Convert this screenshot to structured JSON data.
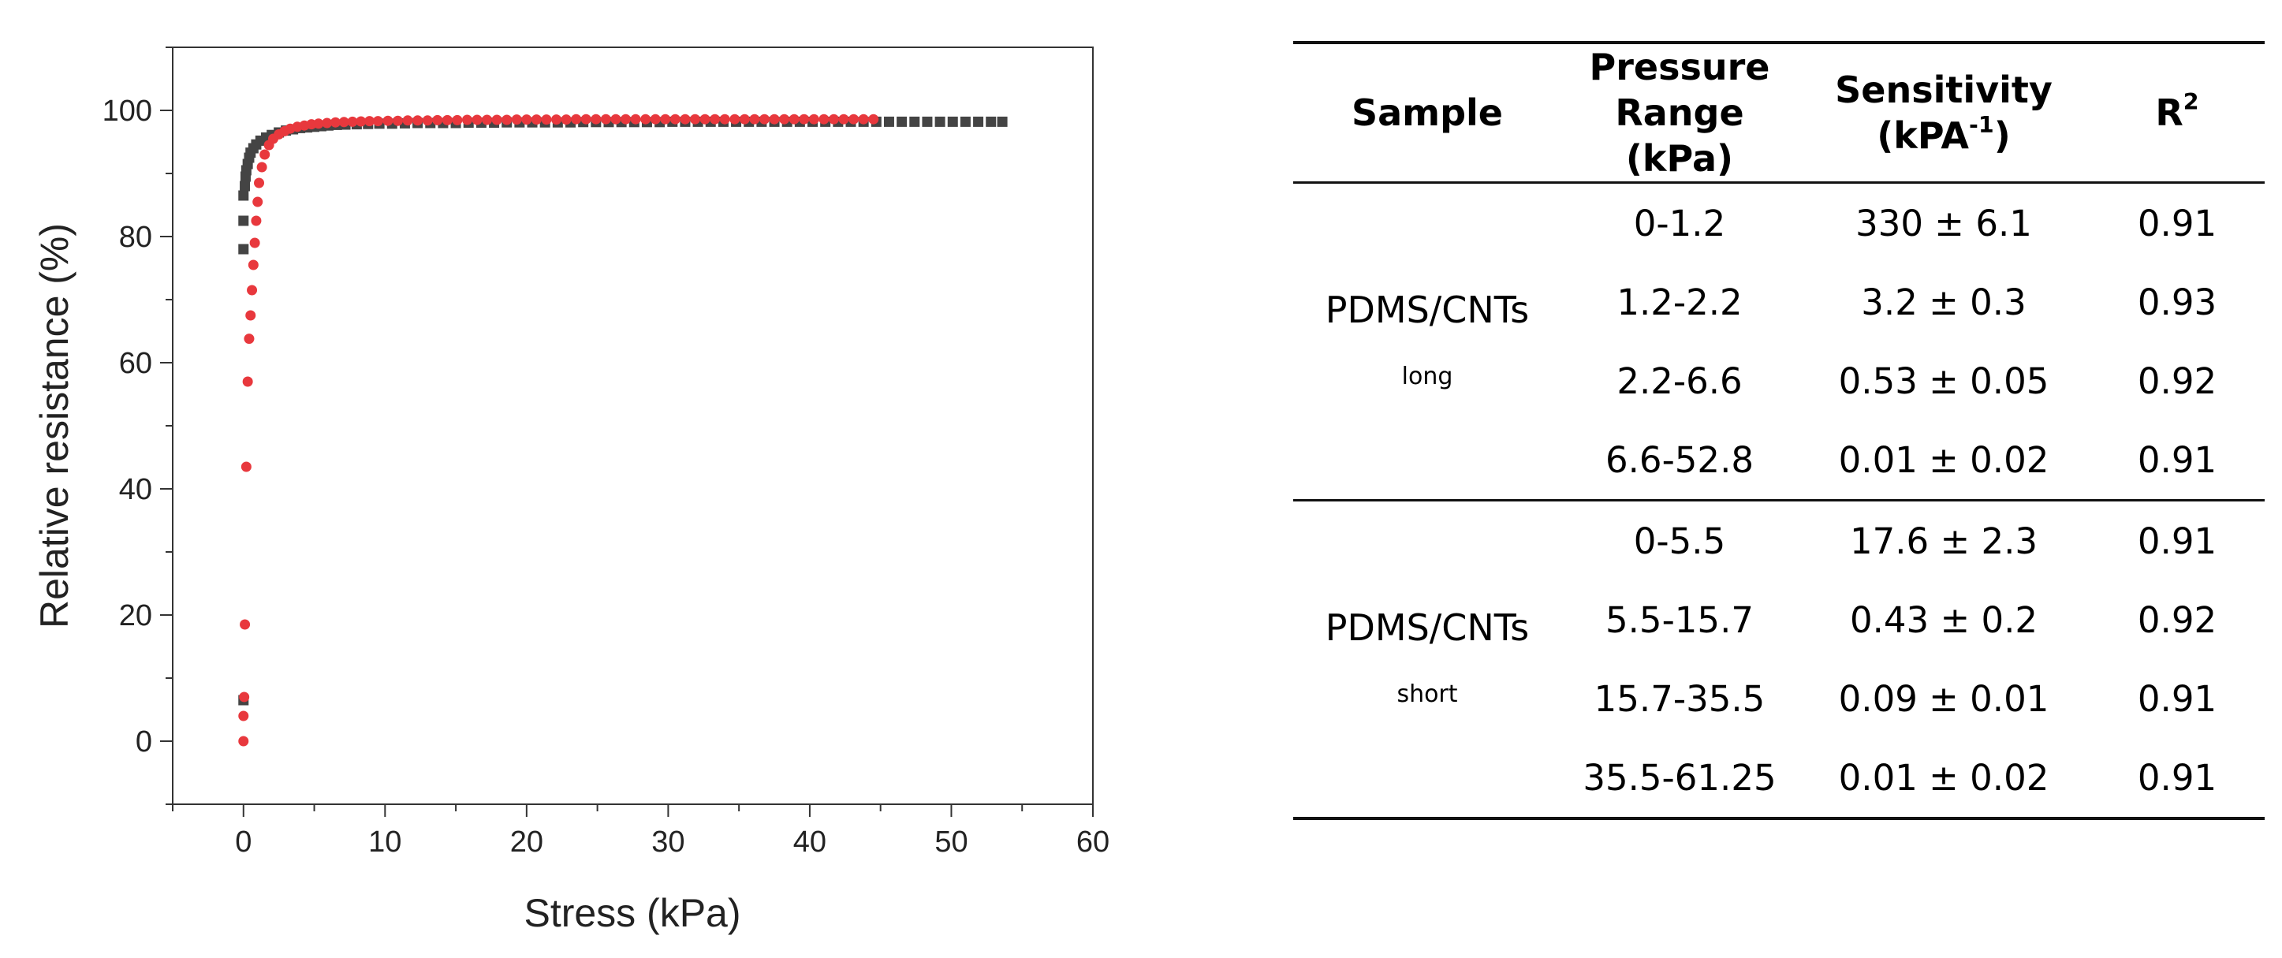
{
  "chart_data": {
    "type": "scatter",
    "title": "",
    "xlabel": "Stress (kPa)",
    "ylabel": "Relative resistance (%)",
    "xlim": [
      -5,
      60
    ],
    "ylim": [
      -10,
      110
    ],
    "xticks": [
      0,
      10,
      20,
      30,
      40,
      50,
      60
    ],
    "yticks": [
      0,
      20,
      40,
      60,
      80,
      100
    ],
    "grid": false,
    "legend": "none",
    "series": [
      {
        "color": "#444444",
        "marker": "square",
        "x": [
          0.0,
          0.0,
          0.0,
          0.0,
          0.1,
          0.15,
          0.2,
          0.3,
          0.4,
          0.5,
          0.7,
          0.9,
          1.2,
          1.6,
          2.0,
          2.5,
          3.0,
          3.5,
          4.0,
          4.5,
          5.0,
          5.5,
          6.0,
          6.6,
          7.2,
          8.0,
          8.8,
          9.6,
          10.5,
          11.4,
          12.3,
          13.2,
          14.1,
          15.0,
          15.9,
          16.8,
          17.7,
          18.6,
          19.5,
          20.4,
          21.3,
          22.2,
          23.1,
          24.0,
          24.9,
          25.8,
          26.7,
          27.6,
          28.5,
          29.4,
          30.3,
          31.2,
          32.1,
          33.0,
          33.9,
          34.8,
          35.7,
          36.6,
          37.5,
          38.4,
          39.3,
          40.2,
          41.1,
          42.0,
          42.9,
          43.8,
          44.7,
          45.6,
          46.5,
          47.4,
          48.3,
          49.2,
          50.1,
          51.0,
          51.9,
          52.8,
          53.6
        ],
        "y": [
          6.5,
          78.0,
          82.5,
          86.5,
          88.0,
          89.5,
          90.5,
          91.5,
          92.5,
          93.3,
          94.0,
          94.6,
          95.2,
          95.7,
          96.1,
          96.5,
          96.8,
          97.0,
          97.2,
          97.3,
          97.4,
          97.5,
          97.6,
          97.7,
          97.75,
          97.8,
          97.85,
          97.9,
          97.9,
          97.95,
          98.0,
          98.0,
          98.0,
          98.0,
          98.05,
          98.05,
          98.05,
          98.1,
          98.1,
          98.1,
          98.1,
          98.1,
          98.1,
          98.15,
          98.15,
          98.15,
          98.15,
          98.15,
          98.15,
          98.15,
          98.2,
          98.2,
          98.2,
          98.2,
          98.2,
          98.2,
          98.2,
          98.2,
          98.2,
          98.2,
          98.2,
          98.2,
          98.2,
          98.2,
          98.2,
          98.2,
          98.2,
          98.2,
          98.2,
          98.2,
          98.2,
          98.2,
          98.2,
          98.2,
          98.2,
          98.2,
          98.2
        ]
      },
      {
        "color": "#e8383d",
        "marker": "circle",
        "x": [
          0.0,
          0.0,
          0.05,
          0.1,
          0.2,
          0.3,
          0.4,
          0.5,
          0.6,
          0.7,
          0.8,
          0.9,
          1.0,
          1.1,
          1.3,
          1.5,
          1.8,
          2.1,
          2.5,
          2.9,
          3.3,
          3.8,
          4.3,
          4.8,
          5.3,
          5.9,
          6.5,
          7.1,
          7.7,
          8.3,
          8.9,
          9.5,
          10.2,
          10.9,
          11.6,
          12.3,
          13.0,
          13.7,
          14.4,
          15.1,
          15.8,
          16.5,
          17.2,
          17.9,
          18.6,
          19.3,
          20.0,
          20.7,
          21.4,
          22.1,
          22.8,
          23.5,
          24.2,
          24.9,
          25.6,
          26.3,
          27.0,
          27.7,
          28.4,
          29.1,
          29.8,
          30.5,
          31.2,
          31.9,
          32.6,
          33.3,
          34.0,
          34.7,
          35.4,
          36.1,
          36.8,
          37.5,
          38.2,
          38.9,
          39.6,
          40.3,
          41.0,
          41.7,
          42.4,
          43.1,
          43.8,
          44.5
        ],
        "y": [
          0.0,
          4.0,
          7.0,
          18.5,
          43.5,
          57.0,
          63.8,
          67.5,
          71.5,
          75.5,
          79.0,
          82.5,
          85.5,
          88.5,
          91.0,
          93.0,
          94.5,
          95.5,
          96.2,
          96.7,
          97.1,
          97.4,
          97.6,
          97.8,
          97.9,
          98.0,
          98.1,
          98.15,
          98.2,
          98.25,
          98.3,
          98.3,
          98.35,
          98.35,
          98.4,
          98.4,
          98.4,
          98.45,
          98.45,
          98.45,
          98.5,
          98.5,
          98.5,
          98.5,
          98.5,
          98.55,
          98.55,
          98.55,
          98.55,
          98.55,
          98.55,
          98.6,
          98.6,
          98.6,
          98.6,
          98.6,
          98.6,
          98.6,
          98.6,
          98.6,
          98.6,
          98.6,
          98.6,
          98.6,
          98.6,
          98.6,
          98.6,
          98.6,
          98.6,
          98.6,
          98.6,
          98.6,
          98.6,
          98.6,
          98.6,
          98.6,
          98.6,
          98.6,
          98.6,
          98.6,
          98.6,
          98.6
        ]
      }
    ]
  },
  "table": {
    "headers": {
      "sample": "Sample",
      "range_line1": "Pressure",
      "range_line2": "Range (kPa)",
      "sens_line1": "Sensitivity",
      "sens_line2_main": "(kPA",
      "sens_line2_sup": "-1",
      "sens_line2_end": ")",
      "r2_main": "R",
      "r2_sup": "2"
    },
    "groups": [
      {
        "sample": "PDMS/CNTs",
        "sub": "long",
        "rows": [
          {
            "range": "0-1.2",
            "sensitivity": "330 ± 6.1",
            "r2": "0.91"
          },
          {
            "range": "1.2-2.2",
            "sensitivity": "3.2 ± 0.3",
            "r2": "0.93"
          },
          {
            "range": "2.2-6.6",
            "sensitivity": "0.53 ± 0.05",
            "r2": "0.92"
          },
          {
            "range": "6.6-52.8",
            "sensitivity": "0.01 ± 0.02",
            "r2": "0.91"
          }
        ]
      },
      {
        "sample": "PDMS/CNTs",
        "sub": "short",
        "rows": [
          {
            "range": "0-5.5",
            "sensitivity": "17.6 ± 2.3",
            "r2": "0.91"
          },
          {
            "range": "5.5-15.7",
            "sensitivity": "0.43 ± 0.2",
            "r2": "0.92"
          },
          {
            "range": "15.7-35.5",
            "sensitivity": "0.09 ± 0.01",
            "r2": "0.91"
          },
          {
            "range": "35.5-61.25",
            "sensitivity": "0.01 ± 0.02",
            "r2": "0.91"
          }
        ]
      }
    ]
  }
}
